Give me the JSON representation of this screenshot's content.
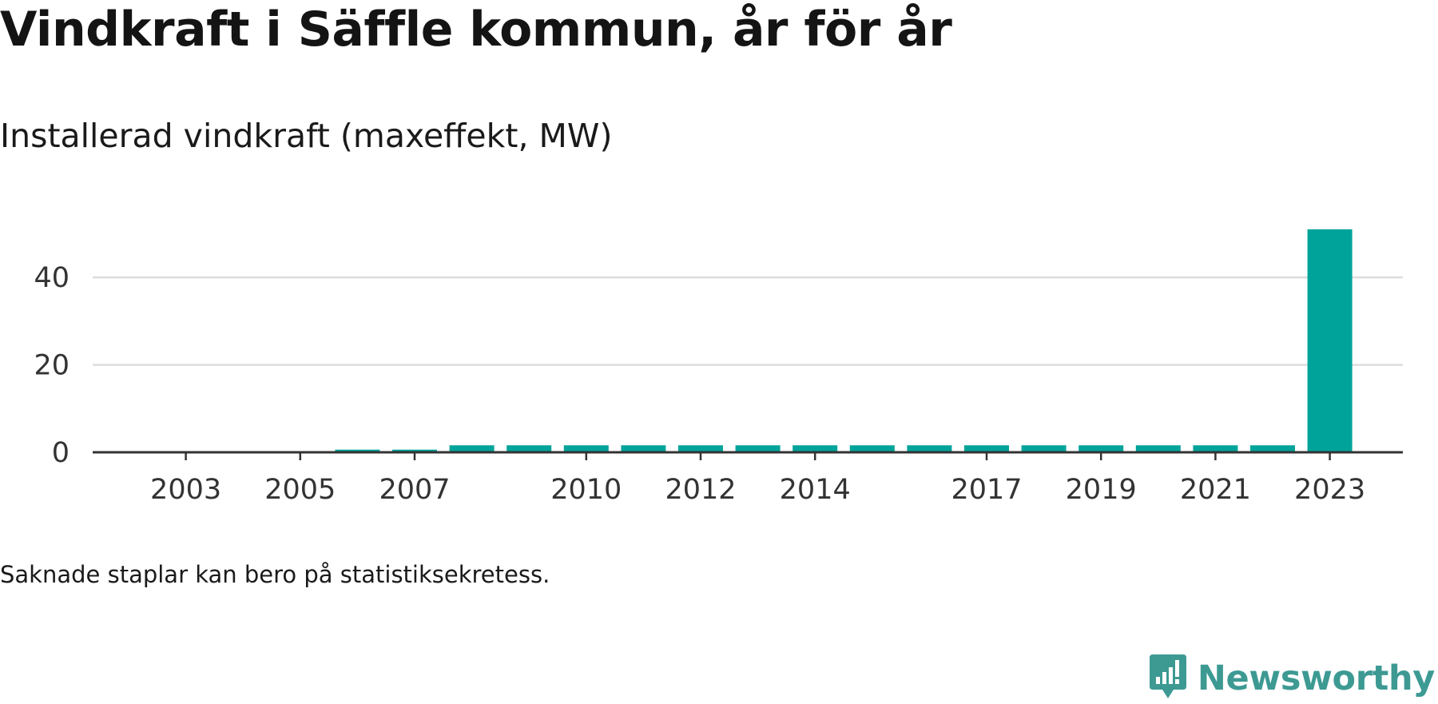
{
  "title": "Vindkraft i Säffle kommun, år för år",
  "subtitle": "Installerad vindkraft (maxeffekt, MW)",
  "footnote": "Saknade staplar kan bero på statistiksekretess.",
  "brand": {
    "name": "Newsworthy",
    "logo_icon": "bar-chart-speech-bubble-icon",
    "color": "#3d9a93"
  },
  "chart_data": {
    "type": "bar",
    "title": "Vindkraft i Säffle kommun, år för år",
    "subtitle": "Installerad vindkraft (maxeffekt, MW)",
    "xlabel": "",
    "ylabel": "",
    "categories": [
      "2002",
      "2003",
      "2004",
      "2005",
      "2006",
      "2007",
      "2008",
      "2009",
      "2010",
      "2011",
      "2012",
      "2013",
      "2014",
      "2015",
      "2016",
      "2017",
      "2018",
      "2019",
      "2020",
      "2021",
      "2022",
      "2023"
    ],
    "values": [
      0,
      0,
      0,
      0,
      0.6,
      0.6,
      1.6,
      1.6,
      1.6,
      1.6,
      1.6,
      1.6,
      1.6,
      1.6,
      1.6,
      1.6,
      1.6,
      1.6,
      1.6,
      1.6,
      1.6,
      51
    ],
    "x_tick_labels": [
      "2003",
      "2005",
      "2007",
      "2010",
      "2012",
      "2014",
      "2017",
      "2019",
      "2021",
      "2023"
    ],
    "y_ticks": [
      0,
      20,
      40
    ],
    "ylim": [
      0,
      51
    ],
    "grid": true,
    "legend": "none",
    "bar_color": "#00a39a",
    "grid_color": "#dddddd",
    "axis_color": "#333333"
  }
}
